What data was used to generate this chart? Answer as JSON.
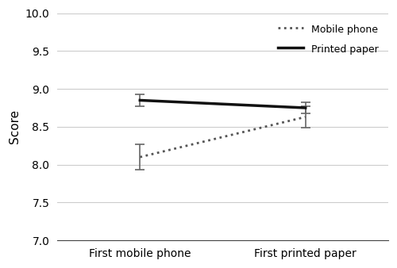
{
  "x_labels": [
    "First mobile phone",
    "First printed paper"
  ],
  "x_positions": [
    0,
    1
  ],
  "mobile_phone": {
    "means": [
      8.1,
      8.63
    ],
    "errors": [
      0.165,
      0.145
    ],
    "color": "#555555",
    "linestyle": "dotted",
    "linewidth": 2.0,
    "label": "Mobile phone"
  },
  "printed_paper": {
    "means": [
      8.85,
      8.75
    ],
    "errors": [
      0.075,
      0.072
    ],
    "color": "#111111",
    "linestyle": "solid",
    "linewidth": 2.5,
    "label": "Printed paper"
  },
  "ylabel": "Score",
  "ylim": [
    7.0,
    10.0
  ],
  "yticks": [
    7.0,
    7.5,
    8.0,
    8.5,
    9.0,
    9.5,
    10.0
  ],
  "xlim": [
    -0.5,
    1.5
  ],
  "grid_color": "#cccccc",
  "grid_linewidth": 0.8,
  "background_color": "#ffffff",
  "figsize": [
    5.0,
    3.38
  ],
  "dpi": 100,
  "capsize": 4,
  "errorbar_color": "#666666",
  "errorbar_linewidth": 1.2
}
